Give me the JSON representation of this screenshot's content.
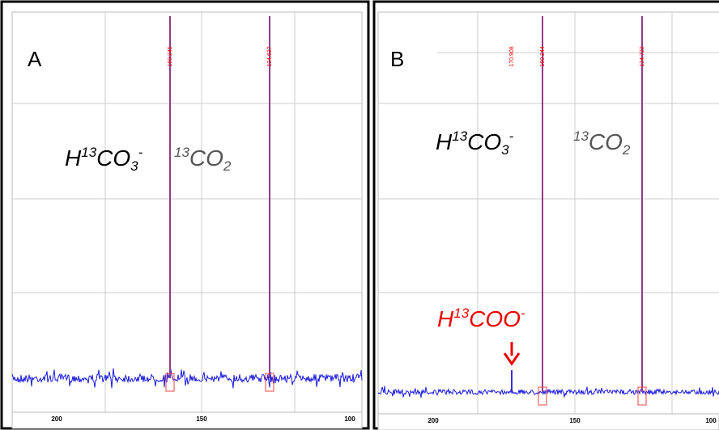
{
  "panels": [
    {
      "label": "A",
      "species": [
        {
          "base": "H",
          "sup": "13",
          "mid": "CO",
          "sub": "3",
          "charge": "-"
        },
        {
          "base": "",
          "sup": "13",
          "mid": "CO",
          "sub": "2",
          "charge": ""
        }
      ],
      "peak_labels": [
        "160.245",
        "124.637"
      ],
      "axis_labels": [
        "200",
        "150",
        "100"
      ]
    },
    {
      "label": "B",
      "species": [
        {
          "base": "H",
          "sup": "13",
          "mid": "CO",
          "sub": "3",
          "charge": "-"
        },
        {
          "base": "",
          "sup": "13",
          "mid": "CO",
          "sub": "2",
          "charge": ""
        }
      ],
      "peak_labels": [
        "170.908",
        "160.244",
        "124.722"
      ],
      "axis_labels": [
        "200",
        "150",
        "100"
      ],
      "annotation": {
        "base": "H",
        "sup": "13",
        "mid": "COO",
        "charge": "-"
      }
    }
  ]
}
